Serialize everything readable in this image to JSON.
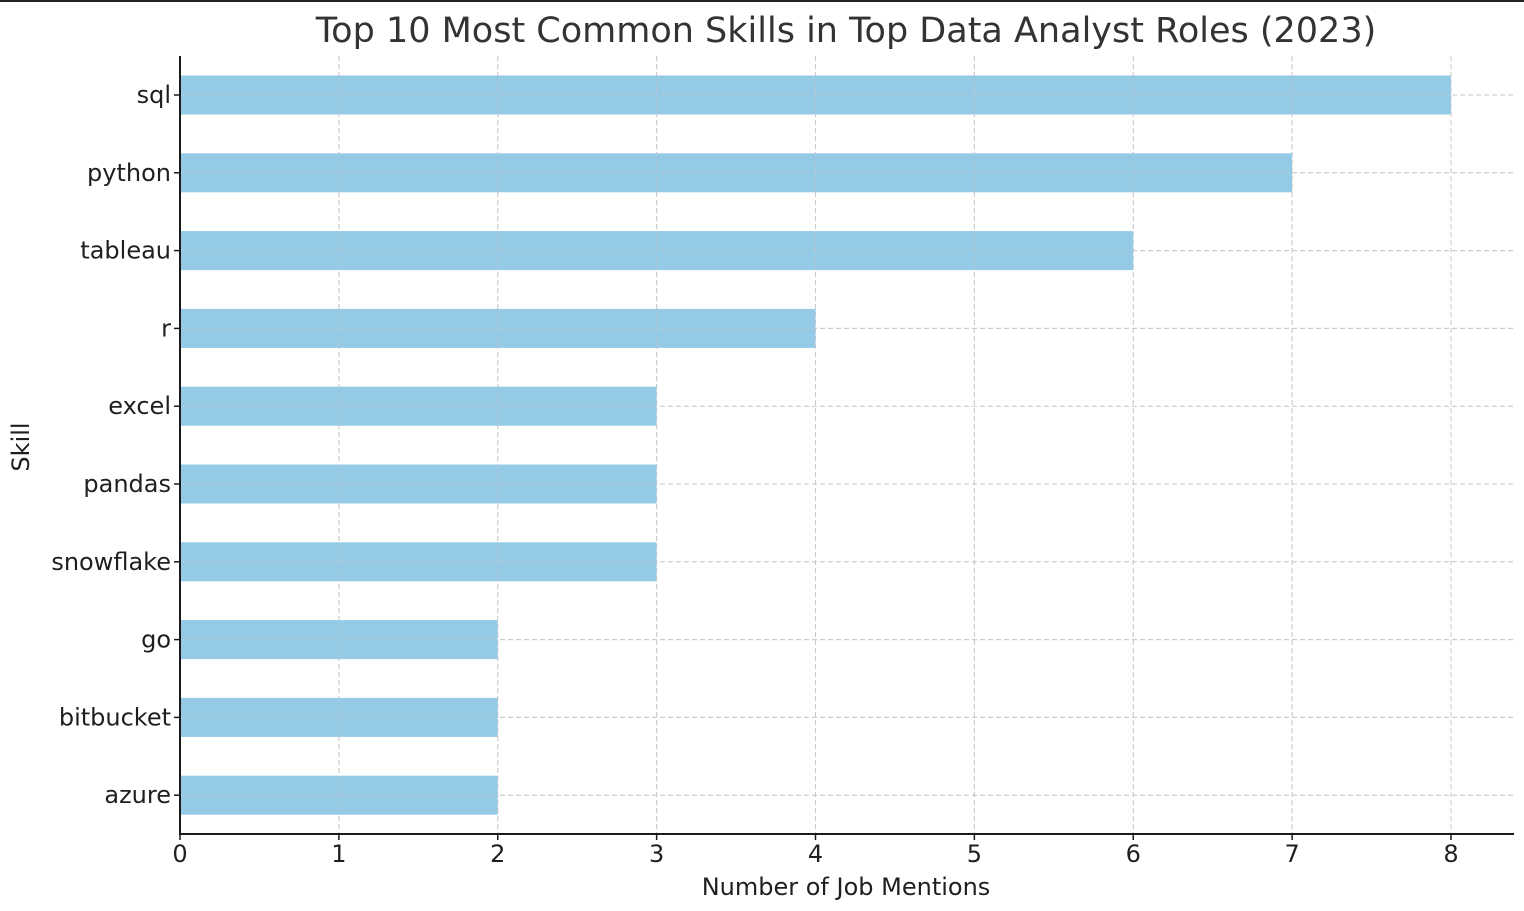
{
  "chart_data": {
    "type": "bar",
    "orientation": "horizontal",
    "title": "Top 10 Most Common Skills in Top Data Analyst Roles (2023)",
    "xlabel": "Number of Job Mentions",
    "ylabel": "Skill",
    "categories": [
      "sql",
      "python",
      "tableau",
      "r",
      "excel",
      "pandas",
      "snowflake",
      "go",
      "bitbucket",
      "azure"
    ],
    "values": [
      8,
      7,
      6,
      4,
      3,
      3,
      3,
      2,
      2,
      2
    ],
    "xlim": [
      0,
      8.4
    ],
    "xticks": [
      0,
      1,
      2,
      3,
      4,
      5,
      6,
      7,
      8
    ],
    "grid": true,
    "bar_color": "#95cae7"
  }
}
